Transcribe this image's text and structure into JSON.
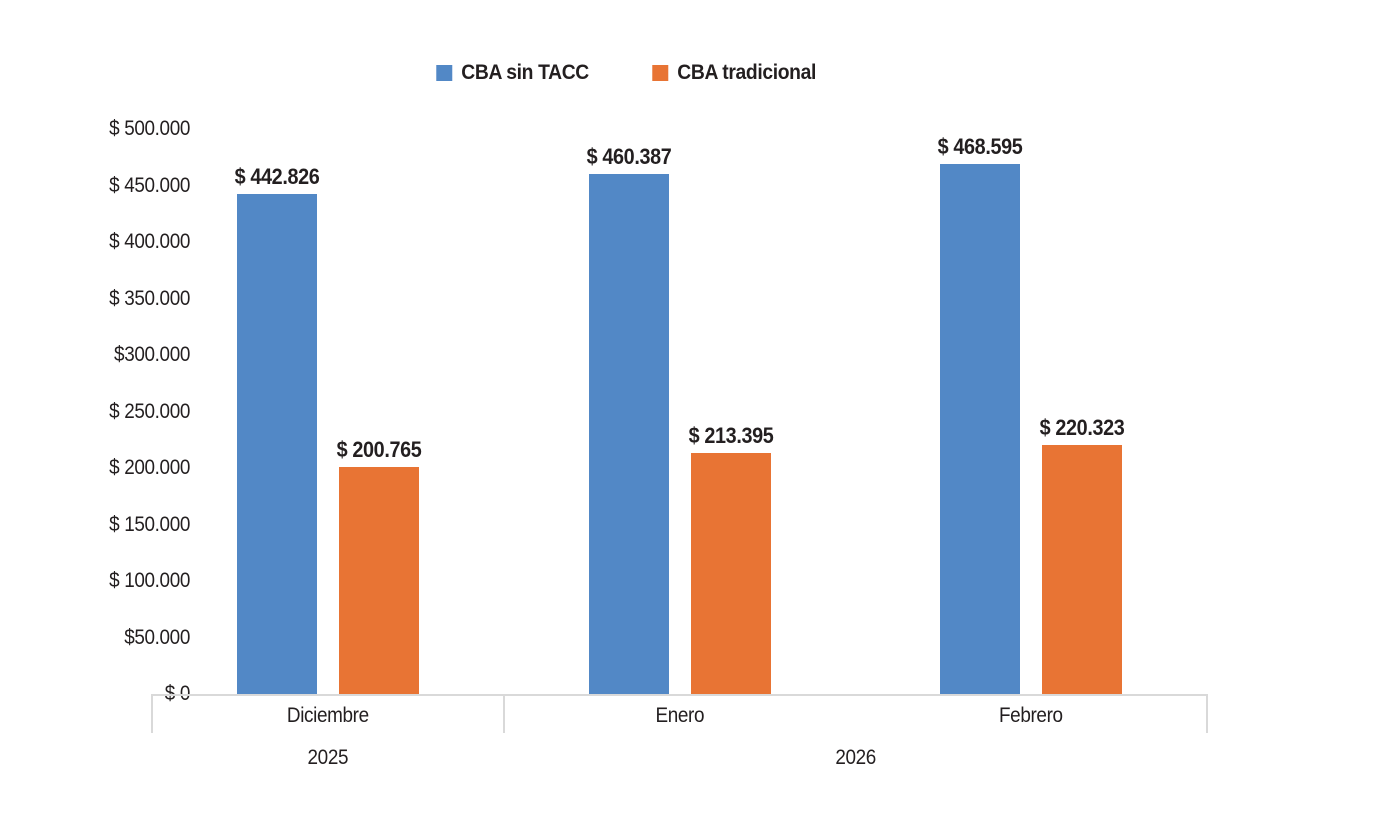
{
  "chart_data": {
    "type": "bar",
    "title": "",
    "legend": [
      {
        "label": "CBA sin TACC",
        "color": "#5288C6"
      },
      {
        "label": "CBA tradicional",
        "color": "#E87434"
      }
    ],
    "categories": [
      "Diciembre",
      "Enero",
      "Febrero"
    ],
    "series": [
      {
        "name": "CBA sin TACC",
        "color": "#5288C6",
        "values": [
          442826,
          460387,
          468595
        ],
        "data_labels": [
          "$ 442.826",
          "$ 460.387",
          "$ 468.595"
        ]
      },
      {
        "name": "CBA tradicional",
        "color": "#E87434",
        "values": [
          200765,
          213395,
          220323
        ],
        "data_labels": [
          "$ 200.765",
          "$ 213.395",
          "$ 220.323"
        ]
      }
    ],
    "x_axis": {
      "month_labels": [
        "Diciembre",
        "Enero",
        "Febrero"
      ],
      "year_groups": [
        {
          "label": "2025",
          "from": 0,
          "to": 1
        },
        {
          "label": "2026",
          "from": 1,
          "to": 3
        }
      ]
    },
    "y_axis": {
      "min": 0,
      "max": 500000,
      "tick_step": 50000,
      "tick_labels": [
        "$ 500.000",
        "$ 450.000",
        "$ 400.000",
        "$ 350.000",
        "$300.000",
        "$ 250.000",
        "$ 200.000",
        "$ 150.000",
        "$ 100.000",
        "$50.000",
        "$ 0"
      ]
    },
    "grid": false,
    "legend_position": "top-center",
    "colors": {
      "axis_line": "#D9D9D9",
      "text": "#231F20",
      "background": "#FFFFFF"
    }
  }
}
